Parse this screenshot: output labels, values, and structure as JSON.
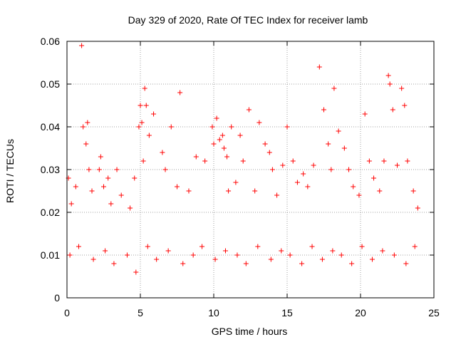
{
  "chart_data": {
    "type": "scatter",
    "title": "Day 329 of 2020, Rate Of TEC Index for receiver lamb",
    "xlabel": "GPS time / hours",
    "ylabel": "ROTI / TECUs",
    "xlim": [
      0,
      25
    ],
    "ylim": [
      0,
      0.06
    ],
    "xticks": [
      0,
      5,
      10,
      15,
      20,
      25
    ],
    "xtick_labels": [
      "0",
      "5",
      "10",
      "15",
      "20",
      "25"
    ],
    "yticks": [
      0,
      0.01,
      0.02,
      0.03,
      0.04,
      0.05,
      0.06
    ],
    "ytick_labels": [
      "0",
      "0.01",
      "0.02",
      "0.03",
      "0.04",
      "0.05",
      "0.06"
    ],
    "grid": true,
    "marker": "plus",
    "marker_color": "#ff0000",
    "series": [
      {
        "x": [
          0.1,
          0.3,
          0.6,
          1.0,
          1.1,
          1.3,
          1.4,
          1.5,
          1.7,
          2.2,
          2.3,
          2.5,
          2.8,
          3.0,
          3.4,
          3.7,
          4.3,
          4.6,
          4.9,
          5.0,
          5.1,
          5.2,
          5.3,
          5.4,
          5.6,
          5.9,
          6.5,
          6.7,
          7.1,
          7.5,
          7.7,
          8.3,
          8.8,
          9.4,
          9.9,
          10.0,
          10.2,
          10.4,
          10.6,
          10.7,
          10.9,
          11.0,
          11.2,
          11.5,
          11.8,
          12.0,
          12.4,
          12.8,
          13.1,
          13.5,
          13.8,
          14.0,
          14.3,
          14.7,
          15.0,
          15.4,
          15.7,
          16.1,
          16.4,
          16.8,
          17.2,
          17.5,
          17.8,
          18.0,
          18.2,
          18.5,
          18.9,
          19.2,
          19.5,
          19.9,
          20.3,
          20.6,
          20.9,
          21.3,
          21.6,
          21.9,
          22.0,
          22.2,
          22.5,
          22.8,
          23.0,
          23.2,
          23.6,
          23.9,
          0.2,
          0.8,
          1.8,
          2.6,
          3.2,
          4.1,
          4.7,
          5.5,
          6.1,
          6.9,
          7.9,
          8.6,
          9.2,
          10.1,
          10.8,
          11.6,
          12.2,
          13.0,
          13.9,
          14.6,
          15.2,
          16.0,
          16.7,
          17.4,
          18.1,
          18.7,
          19.4,
          20.1,
          20.8,
          21.5,
          22.3,
          23.1,
          23.7
        ],
        "y": [
          0.028,
          0.022,
          0.026,
          0.059,
          0.04,
          0.036,
          0.041,
          0.03,
          0.025,
          0.03,
          0.033,
          0.026,
          0.028,
          0.022,
          0.03,
          0.024,
          0.021,
          0.028,
          0.04,
          0.045,
          0.041,
          0.032,
          0.049,
          0.045,
          0.038,
          0.043,
          0.034,
          0.03,
          0.04,
          0.026,
          0.048,
          0.025,
          0.033,
          0.032,
          0.04,
          0.036,
          0.042,
          0.037,
          0.038,
          0.035,
          0.033,
          0.025,
          0.04,
          0.027,
          0.038,
          0.032,
          0.044,
          0.025,
          0.041,
          0.036,
          0.034,
          0.03,
          0.024,
          0.031,
          0.04,
          0.032,
          0.027,
          0.029,
          0.026,
          0.031,
          0.054,
          0.044,
          0.036,
          0.03,
          0.049,
          0.039,
          0.035,
          0.03,
          0.026,
          0.024,
          0.043,
          0.032,
          0.028,
          0.025,
          0.032,
          0.052,
          0.05,
          0.044,
          0.031,
          0.049,
          0.045,
          0.032,
          0.025,
          0.021,
          0.01,
          0.012,
          0.009,
          0.011,
          0.008,
          0.01,
          0.006,
          0.012,
          0.009,
          0.011,
          0.008,
          0.01,
          0.012,
          0.009,
          0.011,
          0.01,
          0.008,
          0.012,
          0.009,
          0.011,
          0.01,
          0.008,
          0.012,
          0.009,
          0.011,
          0.01,
          0.008,
          0.012,
          0.009,
          0.011,
          0.01,
          0.008,
          0.012
        ]
      }
    ]
  }
}
